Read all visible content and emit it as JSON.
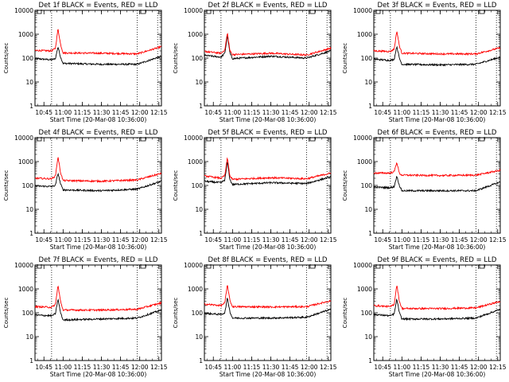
{
  "chart_data": [
    {
      "type": "line",
      "title": "Det 1f BLACK = Events, RED = LLD",
      "xlabel": "Start Time (20-Mar-08 10:36:00)",
      "ylabel": "Counts/sec",
      "log_y": true,
      "ylim": [
        1,
        10000
      ],
      "xlim": [
        "10:38",
        "12:17"
      ],
      "x_ticks": [
        "10:45",
        "11:00",
        "11:15",
        "11:30",
        "11:45",
        "12:00",
        "12:15"
      ],
      "y_ticks": [
        "1",
        "10",
        "100",
        "1000",
        "10000"
      ],
      "vlines": [
        "10:51",
        "11:58",
        "12:14"
      ],
      "series": [
        {
          "name": "BLACK = Events",
          "color": "#000000",
          "points": [
            [
              "10:38",
              95
            ],
            [
              "10:51",
              85
            ],
            [
              "10:54",
              95
            ],
            [
              "10:56",
              300
            ],
            [
              "10:58",
              110
            ],
            [
              "11:00",
              60
            ],
            [
              "11:30",
              55
            ],
            [
              "11:58",
              55
            ],
            [
              "12:17",
              120
            ]
          ]
        },
        {
          "name": "RED = LLD",
          "color": "#ff0000",
          "points": [
            [
              "10:38",
              210
            ],
            [
              "10:51",
              200
            ],
            [
              "10:54",
              260
            ],
            [
              "10:56",
              1700
            ],
            [
              "10:58",
              380
            ],
            [
              "11:00",
              165
            ],
            [
              "11:30",
              160
            ],
            [
              "11:58",
              150
            ],
            [
              "12:17",
              300
            ]
          ]
        }
      ]
    },
    {
      "type": "line",
      "title": "Det 2f BLACK = Events, RED = LLD",
      "xlabel": "Start Time (20-Mar-08 10:36:00)",
      "ylabel": "Counts/sec",
      "log_y": true,
      "ylim": [
        1,
        10000
      ],
      "xlim": [
        "10:38",
        "12:17"
      ],
      "x_ticks": [
        "10:45",
        "11:00",
        "11:15",
        "11:30",
        "11:45",
        "12:00",
        "12:15"
      ],
      "y_ticks": [
        "1",
        "10",
        "100",
        "1000",
        "10000"
      ],
      "vlines": [
        "10:51",
        "11:58",
        "12:14"
      ],
      "series": [
        {
          "name": "BLACK = Events",
          "color": "#000000",
          "points": [
            [
              "10:38",
              130
            ],
            [
              "10:51",
              110
            ],
            [
              "10:54",
              160
            ],
            [
              "10:56",
              900
            ],
            [
              "10:58",
              160
            ],
            [
              "11:00",
              95
            ],
            [
              "11:30",
              120
            ],
            [
              "11:58",
              100
            ],
            [
              "12:17",
              200
            ]
          ]
        },
        {
          "name": "RED = LLD",
          "color": "#ff0000",
          "points": [
            [
              "10:38",
              190
            ],
            [
              "10:51",
              160
            ],
            [
              "10:54",
              220
            ],
            [
              "10:56",
              1150
            ],
            [
              "10:58",
              200
            ],
            [
              "11:00",
              140
            ],
            [
              "11:30",
              160
            ],
            [
              "11:58",
              135
            ],
            [
              "12:17",
              260
            ]
          ]
        }
      ]
    },
    {
      "type": "line",
      "title": "Det 3f BLACK = Events, RED = LLD",
      "xlabel": "Start Time (20-Mar-08 10:36:00)",
      "ylabel": "Counts/sec",
      "log_y": true,
      "ylim": [
        1,
        10000
      ],
      "xlim": [
        "10:38",
        "12:17"
      ],
      "x_ticks": [
        "10:45",
        "11:00",
        "11:15",
        "11:30",
        "11:45",
        "12:00",
        "12:15"
      ],
      "y_ticks": [
        "1",
        "10",
        "100",
        "1000",
        "10000"
      ],
      "vlines": [
        "10:51",
        "11:58",
        "12:14"
      ],
      "series": [
        {
          "name": "BLACK = Events",
          "color": "#000000",
          "points": [
            [
              "10:38",
              90
            ],
            [
              "10:51",
              80
            ],
            [
              "10:54",
              90
            ],
            [
              "10:56",
              320
            ],
            [
              "10:58",
              100
            ],
            [
              "11:00",
              55
            ],
            [
              "11:30",
              52
            ],
            [
              "11:58",
              55
            ],
            [
              "12:17",
              110
            ]
          ]
        },
        {
          "name": "RED = LLD",
          "color": "#ff0000",
          "points": [
            [
              "10:38",
              200
            ],
            [
              "10:51",
              190
            ],
            [
              "10:54",
              240
            ],
            [
              "10:56",
              1400
            ],
            [
              "10:58",
              330
            ],
            [
              "11:00",
              160
            ],
            [
              "11:30",
              150
            ],
            [
              "11:58",
              150
            ],
            [
              "12:17",
              270
            ]
          ]
        }
      ]
    },
    {
      "type": "line",
      "title": "Det 4f BLACK = Events, RED = LLD",
      "xlabel": "Start Time (20-Mar-08 10:36:00)",
      "ylabel": "Counts/sec",
      "log_y": true,
      "ylim": [
        1,
        10000
      ],
      "xlim": [
        "10:38",
        "12:17"
      ],
      "x_ticks": [
        "10:45",
        "11:00",
        "11:15",
        "11:30",
        "11:45",
        "12:00",
        "12:15"
      ],
      "y_ticks": [
        "1",
        "10",
        "100",
        "1000",
        "10000"
      ],
      "vlines": [
        "10:51",
        "11:58",
        "12:14"
      ],
      "series": [
        {
          "name": "BLACK = Events",
          "color": "#000000",
          "points": [
            [
              "10:38",
              95
            ],
            [
              "10:51",
              90
            ],
            [
              "10:54",
              100
            ],
            [
              "10:56",
              330
            ],
            [
              "10:58",
              115
            ],
            [
              "11:00",
              65
            ],
            [
              "11:30",
              60
            ],
            [
              "11:58",
              70
            ],
            [
              "12:17",
              150
            ]
          ]
        },
        {
          "name": "RED = LLD",
          "color": "#ff0000",
          "points": [
            [
              "10:38",
              200
            ],
            [
              "10:51",
              190
            ],
            [
              "10:54",
              250
            ],
            [
              "10:56",
              1600
            ],
            [
              "10:58",
              350
            ],
            [
              "11:00",
              160
            ],
            [
              "11:30",
              150
            ],
            [
              "11:58",
              170
            ],
            [
              "12:17",
              320
            ]
          ]
        }
      ]
    },
    {
      "type": "line",
      "title": "Det 5f BLACK = Events, RED = LLD",
      "xlabel": "Start Time (20-Mar-08 10:36:00)",
      "ylabel": "Counts/sec",
      "log_y": true,
      "ylim": [
        1,
        10000
      ],
      "xlim": [
        "10:38",
        "12:17"
      ],
      "x_ticks": [
        "10:45",
        "11:00",
        "11:15",
        "11:30",
        "11:45",
        "12:00",
        "12:15"
      ],
      "y_ticks": [
        "1",
        "10",
        "100",
        "1000",
        "10000"
      ],
      "vlines": [
        "10:51",
        "11:58",
        "12:14"
      ],
      "series": [
        {
          "name": "BLACK = Events",
          "color": "#000000",
          "points": [
            [
              "10:38",
              150
            ],
            [
              "10:51",
              130
            ],
            [
              "10:54",
              170
            ],
            [
              "10:56",
              1000
            ],
            [
              "10:58",
              170
            ],
            [
              "11:00",
              110
            ],
            [
              "11:30",
              130
            ],
            [
              "11:58",
              120
            ],
            [
              "12:17",
              230
            ]
          ]
        },
        {
          "name": "RED = LLD",
          "color": "#ff0000",
          "points": [
            [
              "10:38",
              250
            ],
            [
              "10:51",
              200
            ],
            [
              "10:54",
              260
            ],
            [
              "10:56",
              1450
            ],
            [
              "10:58",
              240
            ],
            [
              "11:00",
              180
            ],
            [
              "11:30",
              210
            ],
            [
              "11:58",
              190
            ],
            [
              "12:17",
              330
            ]
          ]
        }
      ]
    },
    {
      "type": "line",
      "title": "Det 6f BLACK = Events, RED = LLD",
      "xlabel": "Start Time (20-Mar-08 10:36:00)",
      "ylabel": "Counts/sec",
      "log_y": true,
      "ylim": [
        1,
        10000
      ],
      "xlim": [
        "10:38",
        "12:17"
      ],
      "x_ticks": [
        "10:45",
        "11:00",
        "11:15",
        "11:30",
        "11:45",
        "12:00",
        "12:15"
      ],
      "y_ticks": [
        "1",
        "10",
        "100",
        "1000",
        "10000"
      ],
      "vlines": [
        "10:51",
        "11:58",
        "12:14"
      ],
      "series": [
        {
          "name": "BLACK = Events",
          "color": "#000000",
          "points": [
            [
              "10:38",
              85
            ],
            [
              "10:51",
              80
            ],
            [
              "10:54",
              90
            ],
            [
              "10:56",
              250
            ],
            [
              "10:58",
              100
            ],
            [
              "11:00",
              60
            ],
            [
              "11:30",
              60
            ],
            [
              "11:58",
              60
            ],
            [
              "12:17",
              140
            ]
          ]
        },
        {
          "name": "RED = LLD",
          "color": "#ff0000",
          "points": [
            [
              "10:38",
              330
            ],
            [
              "10:51",
              330
            ],
            [
              "10:54",
              380
            ],
            [
              "10:56",
              950
            ],
            [
              "10:58",
              320
            ],
            [
              "11:00",
              270
            ],
            [
              "11:30",
              260
            ],
            [
              "11:58",
              270
            ],
            [
              "12:17",
              430
            ]
          ]
        }
      ]
    },
    {
      "type": "line",
      "title": "Det 7f BLACK = Events, RED = LLD",
      "xlabel": "Start Time (20-Mar-08 10:36:00)",
      "ylabel": "Counts/sec",
      "log_y": true,
      "ylim": [
        1,
        10000
      ],
      "xlim": [
        "10:38",
        "12:17"
      ],
      "x_ticks": [
        "10:45",
        "11:00",
        "11:15",
        "11:30",
        "11:45",
        "12:00",
        "12:15"
      ],
      "y_ticks": [
        "1",
        "10",
        "100",
        "1000",
        "10000"
      ],
      "vlines": [
        "10:51",
        "11:58",
        "12:14"
      ],
      "series": [
        {
          "name": "BLACK = Events",
          "color": "#000000",
          "points": [
            [
              "10:38",
              80
            ],
            [
              "10:51",
              75
            ],
            [
              "10:54",
              90
            ],
            [
              "10:56",
              380
            ],
            [
              "10:58",
              100
            ],
            [
              "11:00",
              50
            ],
            [
              "11:30",
              55
            ],
            [
              "11:58",
              60
            ],
            [
              "12:17",
              130
            ]
          ]
        },
        {
          "name": "RED = LLD",
          "color": "#ff0000",
          "points": [
            [
              "10:38",
              180
            ],
            [
              "10:51",
              170
            ],
            [
              "10:54",
              220
            ],
            [
              "10:56",
              1400
            ],
            [
              "10:58",
              300
            ],
            [
              "11:00",
              130
            ],
            [
              "11:30",
              130
            ],
            [
              "11:58",
              140
            ],
            [
              "12:17",
              260
            ]
          ]
        }
      ]
    },
    {
      "type": "line",
      "title": "Det 8f BLACK = Events, RED = LLD",
      "xlabel": "Start Time (20-Mar-08 10:36:00)",
      "ylabel": "Counts/sec",
      "log_y": true,
      "ylim": [
        1,
        10000
      ],
      "xlim": [
        "10:38",
        "12:17"
      ],
      "x_ticks": [
        "10:45",
        "11:00",
        "11:15",
        "11:30",
        "11:45",
        "12:00",
        "12:15"
      ],
      "y_ticks": [
        "1",
        "10",
        "100",
        "1000",
        "10000"
      ],
      "vlines": [
        "10:51",
        "11:58",
        "12:14"
      ],
      "series": [
        {
          "name": "BLACK = Events",
          "color": "#000000",
          "points": [
            [
              "10:38",
              95
            ],
            [
              "10:51",
              85
            ],
            [
              "10:54",
              100
            ],
            [
              "10:56",
              420
            ],
            [
              "10:58",
              110
            ],
            [
              "11:00",
              60
            ],
            [
              "11:30",
              60
            ],
            [
              "11:58",
              65
            ],
            [
              "12:17",
              140
            ]
          ]
        },
        {
          "name": "RED = LLD",
          "color": "#ff0000",
          "points": [
            [
              "10:38",
              230
            ],
            [
              "10:51",
              200
            ],
            [
              "10:54",
              260
            ],
            [
              "10:56",
              1500
            ],
            [
              "10:58",
              320
            ],
            [
              "11:00",
              180
            ],
            [
              "11:30",
              175
            ],
            [
              "11:58",
              180
            ],
            [
              "12:17",
              320
            ]
          ]
        }
      ]
    },
    {
      "type": "line",
      "title": "Det 9f BLACK = Events, RED = LLD",
      "xlabel": "Start Time (20-Mar-08 10:36:00)",
      "ylabel": "Counts/sec",
      "log_y": true,
      "ylim": [
        1,
        10000
      ],
      "xlim": [
        "10:38",
        "12:17"
      ],
      "x_ticks": [
        "10:45",
        "11:00",
        "11:15",
        "11:30",
        "11:45",
        "12:00",
        "12:15"
      ],
      "y_ticks": [
        "1",
        "10",
        "100",
        "1000",
        "10000"
      ],
      "vlines": [
        "10:51",
        "11:58",
        "12:14"
      ],
      "series": [
        {
          "name": "BLACK = Events",
          "color": "#000000",
          "points": [
            [
              "10:38",
              85
            ],
            [
              "10:51",
              75
            ],
            [
              "10:54",
              90
            ],
            [
              "10:56",
              380
            ],
            [
              "10:58",
              100
            ],
            [
              "11:00",
              55
            ],
            [
              "11:30",
              55
            ],
            [
              "11:58",
              60
            ],
            [
              "12:17",
              140
            ]
          ]
        },
        {
          "name": "RED = LLD",
          "color": "#ff0000",
          "points": [
            [
              "10:38",
              200
            ],
            [
              "10:51",
              180
            ],
            [
              "10:54",
              230
            ],
            [
              "10:56",
              1500
            ],
            [
              "10:58",
              310
            ],
            [
              "11:00",
              150
            ],
            [
              "11:30",
              150
            ],
            [
              "11:58",
              160
            ],
            [
              "12:17",
              300
            ]
          ]
        }
      ]
    }
  ]
}
